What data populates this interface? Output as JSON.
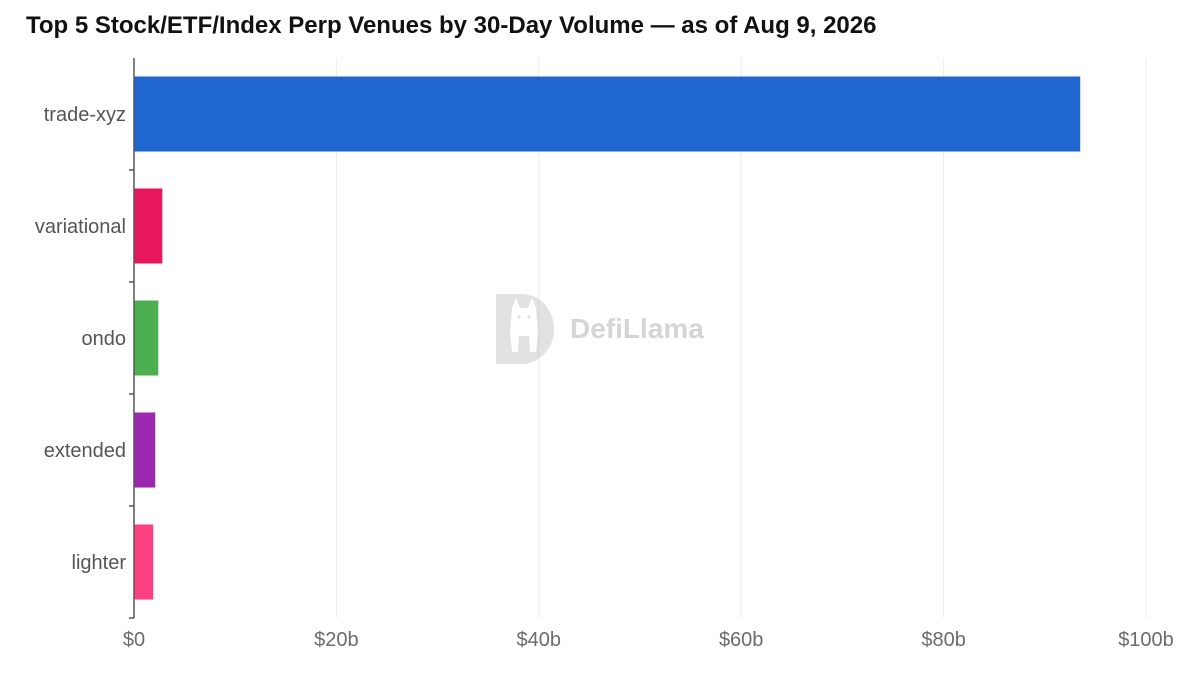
{
  "chart_data": {
    "type": "bar",
    "orientation": "horizontal",
    "title": "Top 5 Stock/ETF/Index Perp Venues by 30-Day Volume — as of Aug 9, 2026",
    "categories": [
      "trade-xyz",
      "variational",
      "ondo",
      "extended",
      "lighter"
    ],
    "values": [
      93.5,
      2.8,
      2.4,
      2.1,
      1.9
    ],
    "unit": "billion USD",
    "colors": [
      "#1f66d1",
      "#e8175d",
      "#4caf50",
      "#9c27b0",
      "#ff4081"
    ],
    "xlim": [
      0,
      100
    ],
    "xticks": [
      {
        "value": 0,
        "label": "$0"
      },
      {
        "value": 20,
        "label": "$20b"
      },
      {
        "value": 40,
        "label": "$40b"
      },
      {
        "value": 60,
        "label": "$60b"
      },
      {
        "value": 80,
        "label": "$80b"
      },
      {
        "value": 100,
        "label": "$100b"
      }
    ],
    "grid": true,
    "legend": "none"
  },
  "watermark": {
    "text": "DefiLlama",
    "icon": "llama-logo-icon"
  }
}
